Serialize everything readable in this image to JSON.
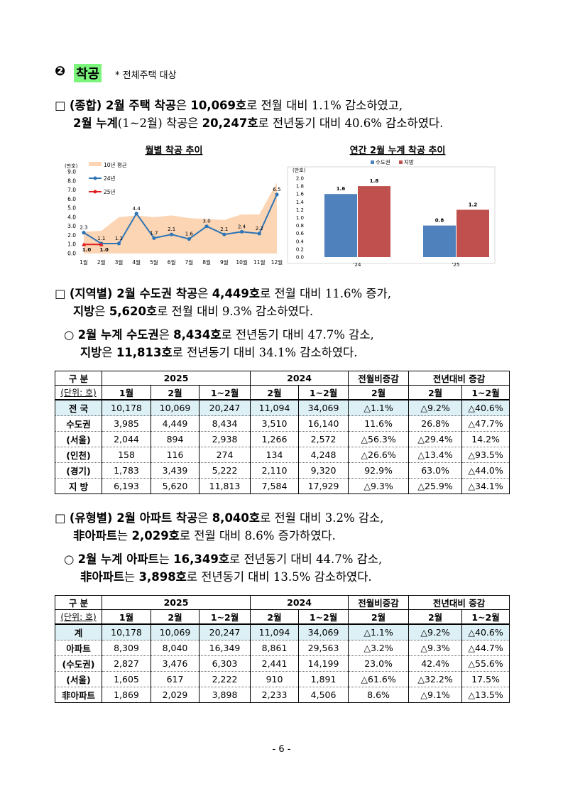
{
  "heading": {
    "marker": "❷",
    "title": "착공",
    "note": "* 전체주택 대상"
  },
  "paragraphs": [
    {
      "lines": [
        [
          {
            "text": "□ "
          },
          {
            "text": "(종합) 2월 주택 착공",
            "bold": true
          },
          {
            "text": "은 "
          },
          {
            "text": "10,069호",
            "bold": true
          },
          {
            "text": "로 전월 대비 1.1% 감소하였고,"
          }
        ],
        [
          {
            "text": "2월 누계",
            "bold": true
          },
          {
            "text": "(1~2월) 착공은 "
          },
          {
            "text": "20,247호",
            "bold": true
          },
          {
            "text": "로 전년동기 대비 40.6% 감소하였다."
          }
        ]
      ]
    },
    {
      "lines": [
        [
          {
            "text": "□ "
          },
          {
            "text": "(지역별) 2월 수도권 착공",
            "bold": true
          },
          {
            "text": "은 "
          },
          {
            "text": "4,449호",
            "bold": true
          },
          {
            "text": "로 전월 대비 11.6% 증가,"
          }
        ],
        [
          {
            "text": "지방",
            "bold": true
          },
          {
            "text": "은 "
          },
          {
            "text": "5,620호",
            "bold": true
          },
          {
            "text": "로 전월 대비 9.3% 감소하였다."
          }
        ]
      ]
    },
    {
      "lines": [
        [
          {
            "text": "○ "
          },
          {
            "text": "2월 누계 수도권",
            "bold": true
          },
          {
            "text": "은 "
          },
          {
            "text": "8,434호",
            "bold": true
          },
          {
            "text": "로 전년동기 대비 47.7% 감소,"
          }
        ],
        [
          {
            "text": "지방",
            "bold": true
          },
          {
            "text": "은 "
          },
          {
            "text": "11,813호",
            "bold": true
          },
          {
            "text": "로 전년동기 대비 34.1% 감소하였다."
          }
        ]
      ]
    },
    {
      "lines": [
        [
          {
            "text": "□ "
          },
          {
            "text": "(유형별) 2월 아파트 착공",
            "bold": true
          },
          {
            "text": "은 "
          },
          {
            "text": "8,040호",
            "bold": true
          },
          {
            "text": "로 전월 대비 3.2% 감소,"
          }
        ],
        [
          {
            "text": "非아파트",
            "bold": true
          },
          {
            "text": "는 "
          },
          {
            "text": "2,029호",
            "bold": true
          },
          {
            "text": "로 전월 대비 8.6% 증가하였다."
          }
        ]
      ]
    },
    {
      "lines": [
        [
          {
            "text": "○ "
          },
          {
            "text": "2월 누계 아파트",
            "bold": true
          },
          {
            "text": "는 "
          },
          {
            "text": "16,349호",
            "bold": true
          },
          {
            "text": "로 전년동기 대비 44.7% 감소,"
          }
        ],
        [
          {
            "text": "非아파트",
            "bold": true
          },
          {
            "text": "는 "
          },
          {
            "text": "3,898호",
            "bold": true
          },
          {
            "text": "로 전년동기 대비 13.5% 감소하였다."
          }
        ]
      ]
    }
  ],
  "chart_data": [
    {
      "type": "line",
      "title": "월별 착공 추이",
      "unit": "(만호)",
      "legend": "top-left",
      "categories": [
        "1월",
        "2월",
        "3월",
        "4월",
        "5월",
        "6월",
        "7월",
        "8월",
        "9월",
        "10월",
        "11월",
        "12월"
      ],
      "ylim": [
        0,
        9
      ],
      "yticks": [
        {
          "value": 0,
          "label": "0.0"
        },
        {
          "value": 1,
          "label": "1.0"
        },
        {
          "value": 2,
          "label": "2.0"
        },
        {
          "value": 3,
          "label": "3.0"
        },
        {
          "value": 4,
          "label": "4.0"
        },
        {
          "value": 5,
          "label": "5.0"
        },
        {
          "value": 6,
          "label": "6.0"
        },
        {
          "value": 7,
          "label": "7.0"
        },
        {
          "value": 8,
          "label": "8.0"
        },
        {
          "value": 9,
          "label": "9.0"
        }
      ],
      "series": [
        {
          "name": "10년 평균",
          "style": "area",
          "color": "#fcd5b4",
          "values": [
            2.4,
            2.5,
            4.0,
            4.2,
            4.0,
            4.2,
            3.9,
            3.8,
            3.7,
            4.3,
            4.3,
            7.8
          ]
        },
        {
          "name": "24년",
          "style": "line",
          "color": "#2e75b6",
          "values": [
            2.3,
            1.1,
            1.1,
            4.4,
            1.7,
            2.1,
            1.6,
            3.0,
            2.1,
            2.4,
            2.2,
            6.5
          ],
          "value_labels": [
            "2.3",
            "1.1",
            "1.1",
            "4.4",
            "1.7",
            "2.1",
            "1.6",
            "3.0",
            "2.1",
            "2.4",
            "2.2",
            "6.5"
          ]
        },
        {
          "name": "25년",
          "style": "line",
          "color": "#e02020",
          "values": [
            1.0,
            1.0,
            null,
            null,
            null,
            null,
            null,
            null,
            null,
            null,
            null,
            null
          ],
          "value_labels": [
            "1.0",
            "1.0",
            null,
            null,
            null,
            null,
            null,
            null,
            null,
            null,
            null,
            null
          ]
        }
      ]
    },
    {
      "type": "bar",
      "title": "연간 2월 누계 착공 추이",
      "unit": "(만호)",
      "legend": "top",
      "categories": [
        "'24",
        "'25"
      ],
      "ylim": [
        0,
        2
      ],
      "yticks": [
        {
          "value": 0,
          "label": "0.0"
        },
        {
          "value": 0.2,
          "label": "0.2"
        },
        {
          "value": 0.4,
          "label": "0.4"
        },
        {
          "value": 0.6,
          "label": "0.6"
        },
        {
          "value": 0.8,
          "label": "0.8"
        },
        {
          "value": 1,
          "label": "1.0"
        },
        {
          "value": 1.2,
          "label": "1.2"
        },
        {
          "value": 1.4,
          "label": "1.4"
        },
        {
          "value": 1.6,
          "label": "1.6"
        },
        {
          "value": 1.8,
          "label": "1.8"
        },
        {
          "value": 2,
          "label": "2.0"
        }
      ],
      "series": [
        {
          "name": "수도권",
          "color": "#4f81bd",
          "values": [
            1.6,
            0.8
          ]
        },
        {
          "name": "지방",
          "color": "#c0504d",
          "values": [
            1.8,
            1.2
          ]
        }
      ]
    }
  ],
  "tables": [
    {
      "header": [
        [
          "구 분",
          "2025",
          "2024",
          "전월비증감",
          "전년대비 증감"
        ],
        [
          "(단위: 호)",
          "1월",
          "2월",
          "1~2월",
          "2월",
          "1~2월",
          "2월",
          "2월",
          "1~2월"
        ]
      ],
      "rows": [
        [
          "전 국",
          "10,178",
          "10,069",
          "20,247",
          "11,094",
          "34,069",
          "△1.1%",
          "△9.2%",
          "△40.6%"
        ],
        [
          "수도권",
          "3,985",
          "4,449",
          "8,434",
          "3,510",
          "16,140",
          "11.6%",
          "26.8%",
          "△47.7%"
        ],
        [
          "(서울)",
          "2,044",
          "894",
          "2,938",
          "1,266",
          "2,572",
          "△56.3%",
          "△29.4%",
          "14.2%"
        ],
        [
          "(인천)",
          "158",
          "116",
          "274",
          "134",
          "4,248",
          "△26.6%",
          "△13.4%",
          "△93.5%"
        ],
        [
          "(경기)",
          "1,783",
          "3,439",
          "5,222",
          "2,110",
          "9,320",
          "92.9%",
          "63.0%",
          "△44.0%"
        ],
        [
          "지 방",
          "6,193",
          "5,620",
          "11,813",
          "7,584",
          "17,929",
          "△9.3%",
          "△25.9%",
          "△34.1%"
        ]
      ]
    },
    {
      "header": [
        [
          "구 분",
          "2025",
          "2024",
          "전월비증감",
          "전년대비 증감"
        ],
        [
          "(단위: 호)",
          "1월",
          "2월",
          "1~2월",
          "2월",
          "1~2월",
          "2월",
          "2월",
          "1~2월"
        ]
      ],
      "rows": [
        [
          "계",
          "10,178",
          "10,069",
          "20,247",
          "11,094",
          "34,069",
          "△1.1%",
          "△9.2%",
          "△40.6%"
        ],
        [
          "아파트",
          "8,309",
          "8,040",
          "16,349",
          "8,861",
          "29,563",
          "△3.2%",
          "△9.3%",
          "△44.7%"
        ],
        [
          "(수도권)",
          "2,827",
          "3,476",
          "6,303",
          "2,441",
          "14,199",
          "23.0%",
          "42.4%",
          "△55.6%"
        ],
        [
          "(서울)",
          "1,605",
          "617",
          "2,222",
          "910",
          "1,891",
          "△61.6%",
          "△32.2%",
          "17.5%"
        ],
        [
          "非아파트",
          "1,869",
          "2,029",
          "3,898",
          "2,233",
          "4,506",
          "8.6%",
          "△9.1%",
          "△13.5%"
        ]
      ]
    }
  ],
  "footer": "- 6 -"
}
